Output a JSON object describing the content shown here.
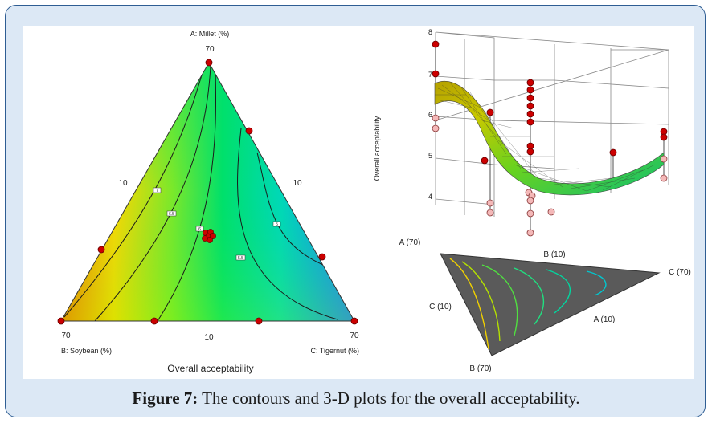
{
  "caption": {
    "label": "Figure 7:",
    "text": "The contours and 3-D plots for the overall acceptability."
  },
  "chart_data": [
    {
      "type": "contour",
      "subtype": "ternary",
      "title": "Overall acceptability",
      "vertex_a": {
        "title": "A: Millet (%)",
        "value": "70"
      },
      "vertex_b": {
        "title": "B: Soybean (%)",
        "value": "70"
      },
      "vertex_c": {
        "title": "C: Tigernut  (%)",
        "value": "70"
      },
      "edge_labels": [
        "10",
        "10",
        "10"
      ],
      "contour_levels": [
        "7",
        "6.5",
        "6",
        "5",
        "5.5"
      ],
      "design_points": "red dots",
      "colormap": [
        "#1e90ff",
        "#00e0b0",
        "#00e070",
        "#ffe000",
        "#ff8000"
      ]
    },
    {
      "type": "surface3d",
      "zlabel": "Overall acceptability",
      "zticks": [
        "8",
        "7",
        "6",
        "5",
        "4"
      ],
      "zlim": [
        3.5,
        8
      ],
      "base_labels": {
        "a_top": "A (70)",
        "b_upper": "B (10)",
        "c_right": "C (70)",
        "c_left": "C (10)",
        "a_lower": "A (10)",
        "b_bottom": "B (70)"
      }
    }
  ]
}
